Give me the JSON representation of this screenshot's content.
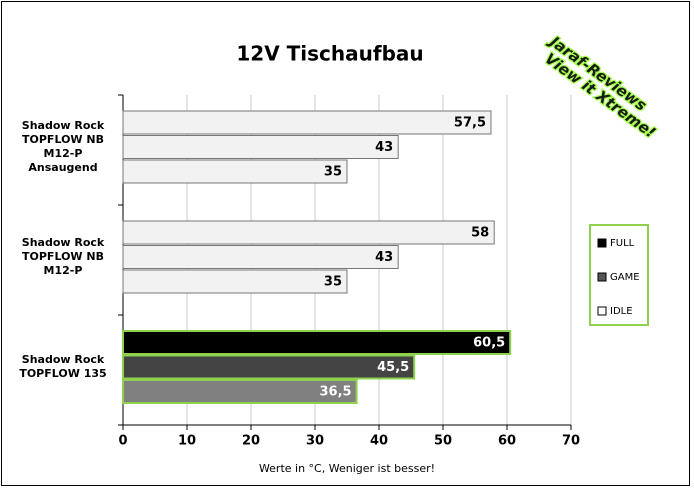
{
  "chart_data": {
    "type": "bar",
    "orientation": "horizontal",
    "title": "12V Tischaufbau",
    "x_label": "Werte in °C, Weniger ist besser!",
    "categories": [
      "Shadow Rock\nTOPFLOW NB\nM12-P\nAnsaugend",
      "Shadow Rock\nTOPFLOW NB\nM12-P",
      "Shadow Rock\nTOPFLOW 135"
    ],
    "series": [
      {
        "name": "FULL",
        "color": "#000000",
        "colors": [
          "#f2f2f2",
          "#f2f2f2",
          "#000000"
        ],
        "values": [
          57.5,
          58,
          60.5
        ],
        "value_labels": [
          "57,5",
          "58",
          "60,5"
        ]
      },
      {
        "name": "GAME",
        "color": "#555555",
        "colors": [
          "#f2f2f2",
          "#f2f2f2",
          "#444444"
        ],
        "values": [
          43,
          43,
          45.5
        ],
        "value_labels": [
          "43",
          "43",
          "45,5"
        ]
      },
      {
        "name": "IDLE",
        "color": "#ffffff",
        "colors": [
          "#f2f2f2",
          "#f2f2f2",
          "#808080"
        ],
        "values": [
          35,
          35,
          36.5
        ],
        "value_labels": [
          "35",
          "35",
          "36,5"
        ]
      }
    ],
    "xlim": [
      0,
      70
    ],
    "xticks": [
      0,
      10,
      20,
      30,
      40,
      50,
      60,
      70
    ],
    "grid": true,
    "legend": "right",
    "watermark": [
      "Jaraf-Reviews",
      "View it Xtreme!"
    ]
  }
}
